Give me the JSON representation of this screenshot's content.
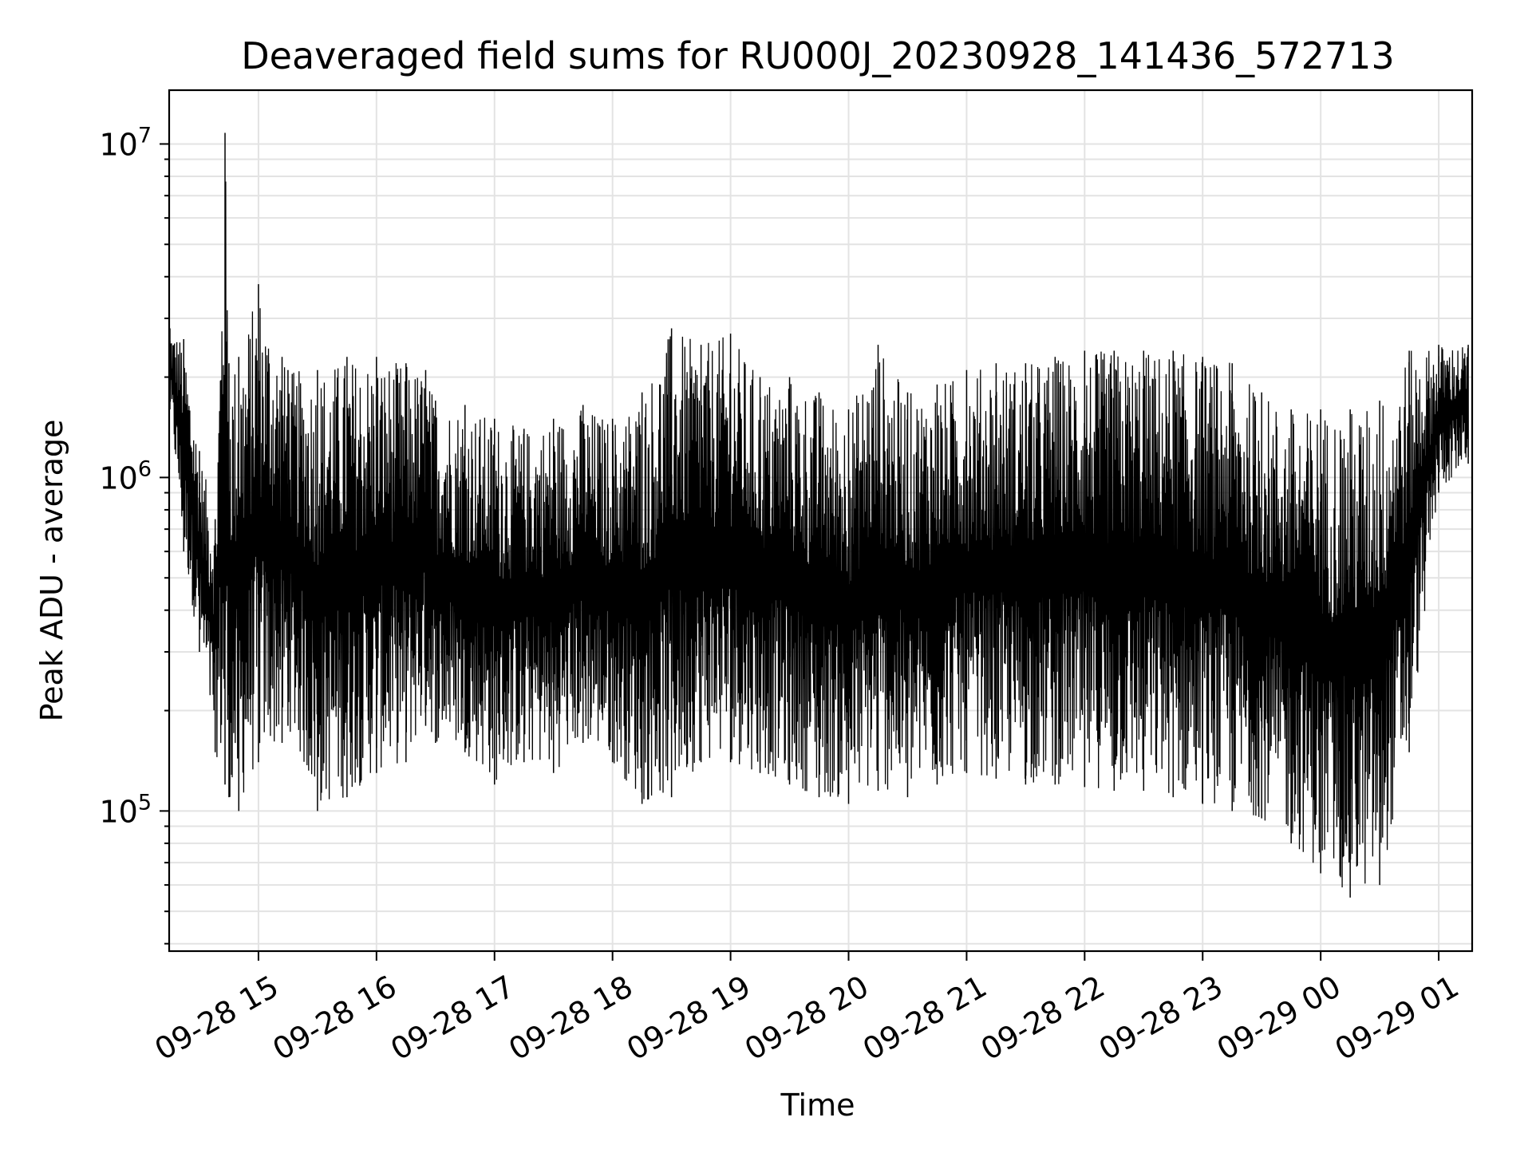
{
  "chart_data": {
    "type": "line",
    "title": "Deaveraged field sums for RU000J_20230928_141436_572713",
    "xlabel": "Time",
    "ylabel": "Peak ADU - average",
    "yscale": "log",
    "ylim": [
      38000,
      14500000
    ],
    "xlim": [
      "2023-09-28 14:14:36",
      "2023-09-29 01:17:00"
    ],
    "grid": true,
    "line_color": "#000000",
    "x_ticks": [
      "09-28 15",
      "09-28 16",
      "09-28 17",
      "09-28 18",
      "09-28 19",
      "09-28 20",
      "09-28 21",
      "09-28 22",
      "09-28 23",
      "09-29 00",
      "09-29 01"
    ],
    "y_ticks": [
      {
        "base": "10",
        "exp": "5"
      },
      {
        "base": "10",
        "exp": "6"
      },
      {
        "base": "10",
        "exp": "7"
      }
    ],
    "x": [
      "2023-09-28 14:15",
      "2023-09-28 14:22",
      "2023-09-28 14:30",
      "2023-09-28 14:38",
      "2023-09-28 14:43",
      "2023-09-28 14:45",
      "2023-09-28 14:50",
      "2023-09-28 15:00",
      "2023-09-28 15:12",
      "2023-09-28 15:15",
      "2023-09-28 15:30",
      "2023-09-28 15:45",
      "2023-09-28 16:00",
      "2023-09-28 16:15",
      "2023-09-28 16:25",
      "2023-09-28 16:30",
      "2023-09-28 16:45",
      "2023-09-28 17:00",
      "2023-09-28 17:15",
      "2023-09-28 17:30",
      "2023-09-28 17:45",
      "2023-09-28 18:00",
      "2023-09-28 18:15",
      "2023-09-28 18:30",
      "2023-09-28 18:45",
      "2023-09-28 19:00",
      "2023-09-28 19:15",
      "2023-09-28 19:30",
      "2023-09-28 19:45",
      "2023-09-28 20:00",
      "2023-09-28 20:15",
      "2023-09-28 20:30",
      "2023-09-28 20:45",
      "2023-09-28 21:00",
      "2023-09-28 21:15",
      "2023-09-28 21:30",
      "2023-09-28 21:45",
      "2023-09-28 22:00",
      "2023-09-28 22:15",
      "2023-09-28 22:30",
      "2023-09-28 22:45",
      "2023-09-28 23:00",
      "2023-09-28 23:15",
      "2023-09-28 23:30",
      "2023-09-28 23:45",
      "2023-09-29 00:00",
      "2023-09-29 00:15",
      "2023-09-29 00:30",
      "2023-09-29 00:45",
      "2023-09-29 01:00",
      "2023-09-29 01:15"
    ],
    "series": [
      {
        "high": [
          2800000,
          2600000,
          1200000,
          750000,
          10800000,
          2200000,
          2300000,
          3800000,
          2300000,
          2100000,
          2100000,
          2300000,
          2300000,
          2200000,
          2100000,
          1700000,
          1650000,
          1500000,
          1400000,
          1500000,
          1650000,
          1500000,
          1800000,
          2800000,
          2500000,
          2700000,
          2000000,
          2000000,
          1800000,
          1600000,
          2500000,
          1800000,
          1900000,
          2100000,
          2200000,
          2200000,
          2300000,
          2400000,
          2400000,
          2400000,
          2400000,
          2300000,
          2200000,
          1800000,
          1600000,
          1600000,
          1600000,
          1700000,
          2400000,
          2500000,
          2500000
        ],
        "low": [
          1600000,
          600000,
          300000,
          150000,
          120000,
          110000,
          100000,
          140000,
          160000,
          180000,
          100000,
          110000,
          130000,
          140000,
          180000,
          160000,
          150000,
          120000,
          140000,
          130000,
          160000,
          140000,
          105000,
          110000,
          140000,
          140000,
          130000,
          120000,
          110000,
          105000,
          115000,
          110000,
          120000,
          130000,
          125000,
          120000,
          120000,
          118000,
          115000,
          115000,
          110000,
          105000,
          100000,
          95000,
          80000,
          65000,
          55000,
          60000,
          150000,
          900000,
          1100000
        ]
      }
    ]
  }
}
